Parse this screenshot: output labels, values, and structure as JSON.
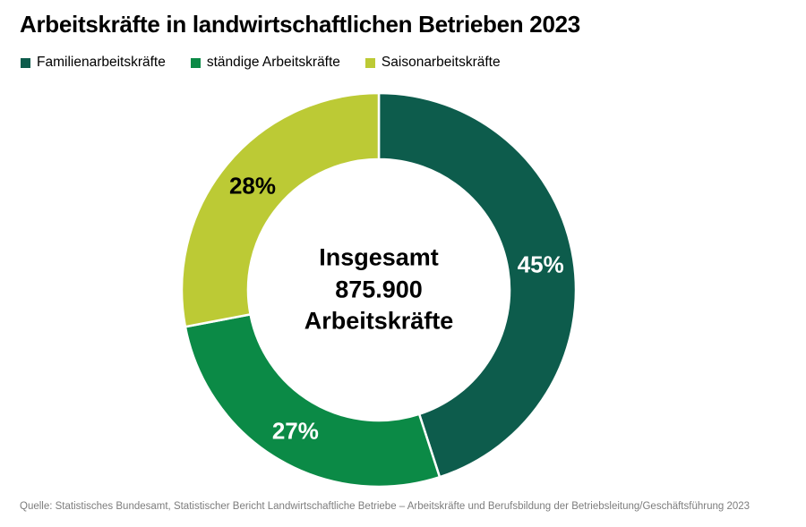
{
  "title": "Arbeitskräfte in landwirtschaftlichen Betrieben 2023",
  "source": "Quelle: Statistisches Bundesamt, Statistischer Bericht Landwirtschaftliche Betriebe – Arbeitskräfte und Berufsbildung der Betriebsleitung/Geschäftsführung 2023",
  "chart_data": {
    "type": "pie",
    "subtype": "donut",
    "title": "Arbeitskräfte in landwirtschaftlichen Betrieben 2023",
    "legend_position": "top-left",
    "order": "clockwise",
    "start_angle_deg": 0,
    "total": "875.900",
    "center_lines": [
      "Insgesamt",
      "875.900",
      "Arbeitskräfte"
    ],
    "segments": [
      {
        "label": "Familienarbeitskräfte",
        "value_pct": 45,
        "display": "45%",
        "color": "#0d5c4c",
        "label_color": "#ffffff"
      },
      {
        "label": "ständige Arbeitskräfte",
        "value_pct": 27,
        "display": "27%",
        "color": "#0b8a46",
        "label_color": "#ffffff"
      },
      {
        "label": "Saisonarbeitskräfte",
        "value_pct": 28,
        "display": "28%",
        "color": "#bcca35",
        "label_color": "#000000"
      }
    ],
    "geometry": {
      "outer_radius": 220,
      "inner_radius": 146,
      "label_radius": 183,
      "separator_color": "#ffffff",
      "separator_width": 2.5
    }
  }
}
